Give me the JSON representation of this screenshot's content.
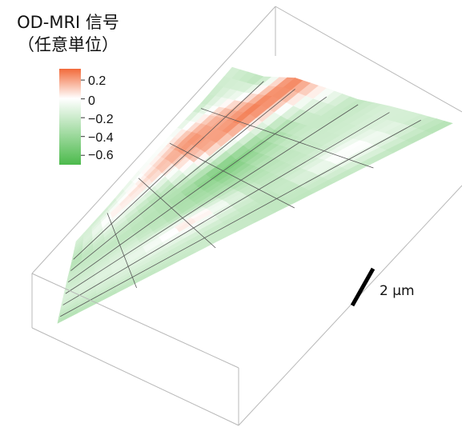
{
  "title": [
    "OD-MRI 信号",
    "（任意単位）"
  ],
  "chart_data": {
    "type": "surface",
    "colorbar": {
      "ticks": [
        "0.2",
        "0",
        "−0.2",
        "−0.4",
        "−0.6"
      ],
      "tick_values": [
        0.2,
        0,
        -0.2,
        -0.4,
        -0.6
      ],
      "range": [
        -0.7,
        0.32
      ],
      "colors": {
        "positive": "#f26a3a",
        "zero": "#ffffff",
        "negative": "#4cba4c"
      }
    },
    "grid": {
      "rows": 7,
      "cols": 5
    },
    "scale_bar": "2 μm",
    "signal": [
      [
        -0.15,
        -0.2,
        -0.05,
        -0.05,
        -0.25,
        -0.15
      ],
      [
        -0.25,
        0.05,
        0.1,
        0.25,
        0.1,
        -0.3
      ],
      [
        -0.3,
        -0.15,
        -0.3,
        0.15,
        0.3,
        0.28
      ],
      [
        -0.2,
        -0.25,
        -0.3,
        -0.55,
        -0.35,
        0.05
      ],
      [
        -0.2,
        -0.15,
        -0.3,
        -0.35,
        -0.2,
        -0.25
      ],
      [
        -0.15,
        -0.1,
        0.1,
        -0.25,
        -0.2,
        -0.15
      ],
      [
        -0.2,
        -0.15,
        -0.2,
        -0.25,
        0.05,
        -0.2
      ],
      [
        -0.3,
        -0.25,
        -0.2,
        -0.25,
        -0.25,
        -0.3
      ]
    ]
  }
}
